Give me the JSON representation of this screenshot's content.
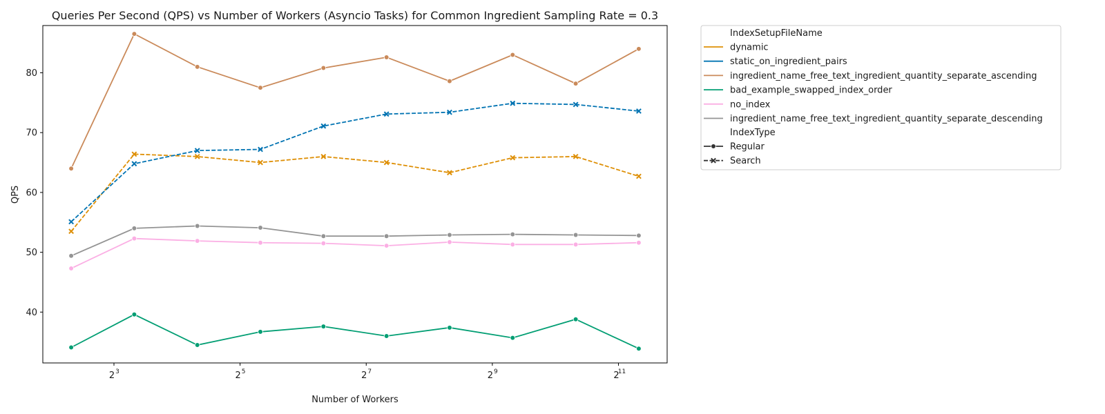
{
  "chart_data": {
    "type": "line",
    "title": "Queries Per Second (QPS) vs Number of Workers (Asyncio Tasks) for Common Ingredient Sampling Rate = 0.3",
    "xlabel": "Number of Workers",
    "ylabel": "QPS",
    "x_scale": "log2",
    "x_ticks": [
      {
        "value": 8,
        "base": "2",
        "exp": "3"
      },
      {
        "value": 32,
        "base": "2",
        "exp": "5"
      },
      {
        "value": 128,
        "base": "2",
        "exp": "7"
      },
      {
        "value": 512,
        "base": "2",
        "exp": "9"
      },
      {
        "value": 2048,
        "base": "2",
        "exp": "11"
      }
    ],
    "y_ticks": [
      40,
      50,
      60,
      70,
      80
    ],
    "ylim": [
      31.5,
      87.9
    ],
    "grid": false,
    "legend_position": "outside-right",
    "x": [
      5,
      10,
      20,
      40,
      80,
      160,
      320,
      640,
      1280,
      2560
    ],
    "legend": {
      "title1": "IndexSetupFileName",
      "title2": "IndexType",
      "style_entries": [
        {
          "label": "Regular",
          "marker": "circle",
          "dash": "solid"
        },
        {
          "label": "Search",
          "marker": "x",
          "dash": "dashed"
        }
      ]
    },
    "series": [
      {
        "name": "dynamic",
        "index_type": "Search",
        "color": "#de8f05",
        "values": [
          53.5,
          66.4,
          66.0,
          65.0,
          66.0,
          65.0,
          63.3,
          65.8,
          66.0,
          62.7
        ]
      },
      {
        "name": "static_on_ingredient_pairs",
        "index_type": "Search",
        "color": "#0173b2",
        "values": [
          55.1,
          64.8,
          67.0,
          67.2,
          71.1,
          73.1,
          73.4,
          74.9,
          74.7,
          73.6
        ]
      },
      {
        "name": "ingredient_name_free_text_ingredient_quantity_separate_ascending",
        "index_type": "Regular",
        "color": "#ca8a5a",
        "values": [
          64.0,
          86.5,
          81.0,
          77.5,
          80.8,
          82.6,
          78.6,
          83.0,
          78.2,
          84.0
        ]
      },
      {
        "name": "bad_example_swapped_index_order",
        "index_type": "Regular",
        "color": "#029e73",
        "values": [
          34.1,
          39.6,
          34.5,
          36.7,
          37.6,
          36.0,
          37.4,
          35.7,
          38.8,
          33.9
        ]
      },
      {
        "name": "no_index",
        "index_type": "Regular",
        "color": "#fbafe4",
        "values": [
          47.3,
          52.3,
          51.9,
          51.6,
          51.5,
          51.1,
          51.7,
          51.3,
          51.3,
          51.6
        ]
      },
      {
        "name": "ingredient_name_free_text_ingredient_quantity_separate_descending",
        "index_type": "Regular",
        "color": "#949494",
        "values": [
          49.4,
          54.0,
          54.4,
          54.1,
          52.7,
          52.7,
          52.9,
          53.0,
          52.9,
          52.8
        ]
      }
    ]
  }
}
